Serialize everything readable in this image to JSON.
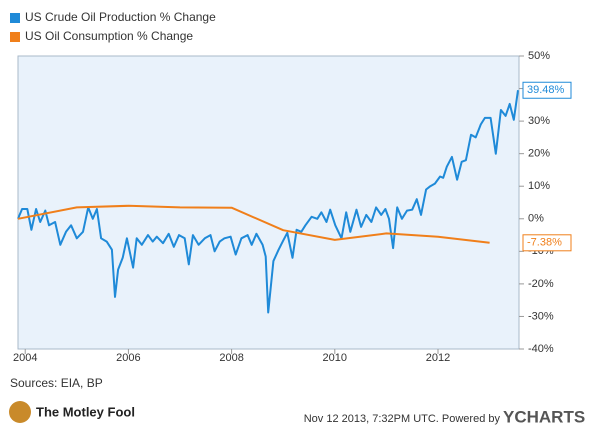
{
  "chart_data": {
    "type": "line",
    "series": [
      {
        "name": "US Crude Oil Production % Change",
        "color": "#1f8ad8",
        "end_label": "39.48%",
        "x": [
          2003.86,
          2003.94,
          2004.04,
          2004.12,
          2004.21,
          2004.29,
          2004.39,
          2004.46,
          2004.58,
          2004.68,
          2004.79,
          2004.89,
          2005.0,
          2005.12,
          2005.22,
          2005.31,
          2005.39,
          2005.47,
          2005.58,
          2005.68,
          2005.74,
          2005.8,
          2005.89,
          2005.97,
          2006.09,
          2006.16,
          2006.26,
          2006.38,
          2006.47,
          2006.55,
          2006.67,
          2006.78,
          2006.88,
          2006.98,
          2007.09,
          2007.17,
          2007.25,
          2007.36,
          2007.48,
          2007.59,
          2007.67,
          2007.77,
          2007.86,
          2007.98,
          2008.08,
          2008.19,
          2008.31,
          2008.39,
          2008.48,
          2008.6,
          2008.66,
          2008.71,
          2008.81,
          2008.91,
          2009.0,
          2009.08,
          2009.18,
          2009.26,
          2009.35,
          2009.43,
          2009.55,
          2009.66,
          2009.74,
          2009.84,
          2009.91,
          2010.01,
          2010.13,
          2010.22,
          2010.3,
          2010.42,
          2010.51,
          2010.61,
          2010.71,
          2010.8,
          2010.9,
          2010.98,
          2011.05,
          2011.13,
          2011.21,
          2011.3,
          2011.4,
          2011.5,
          2011.59,
          2011.67,
          2011.77,
          2011.85,
          2011.94,
          2012.04,
          2012.1,
          2012.17,
          2012.27,
          2012.37,
          2012.46,
          2012.54,
          2012.64,
          2012.73,
          2012.83,
          2012.91,
          2013.02,
          2013.12,
          2013.22,
          2013.31,
          2013.39,
          2013.47,
          2013.55
        ],
        "values": [
          0,
          3,
          3,
          -3.4,
          3,
          -1,
          2.5,
          -2,
          -1,
          -8,
          -4,
          -2,
          -6,
          -4,
          3.5,
          0,
          3,
          -6,
          -7,
          -9.5,
          -24,
          -15.6,
          -12,
          -6,
          -15,
          -6,
          -8,
          -5,
          -7,
          -5.5,
          -7.5,
          -4.6,
          -8.6,
          -5,
          -6,
          -14,
          -5,
          -8,
          -6,
          -5,
          -10,
          -7,
          -6,
          -5.5,
          -11,
          -6,
          -5,
          -8,
          -4.6,
          -8,
          -11.6,
          -28.8,
          -13,
          -9.5,
          -6.7,
          -4.3,
          -12,
          -3.4,
          -4,
          -2,
          0.6,
          0,
          2,
          -1,
          2.8,
          -2,
          -6,
          2,
          -4,
          2.8,
          -2.5,
          1.2,
          -1,
          3.5,
          1.2,
          3,
          0,
          -9,
          3.5,
          0,
          2.5,
          2.8,
          6,
          1.2,
          9,
          10,
          10.8,
          13,
          12.6,
          16,
          19,
          12,
          17.5,
          18,
          25.8,
          25,
          29,
          31,
          31,
          20,
          33.4,
          31.6,
          35.3,
          30.4,
          39.48
        ]
      },
      {
        "name": "US Oil Consumption % Change",
        "color": "#f07f1a",
        "end_label": "-7.38%",
        "x": [
          2003.86,
          2005,
          2006,
          2007,
          2008,
          2009,
          2010,
          2011,
          2012,
          2013
        ],
        "values": [
          0,
          3.5,
          4,
          3.5,
          3.4,
          -3.5,
          -6.5,
          -4.5,
          -5.5,
          -7.38
        ]
      }
    ],
    "xlim": [
      2003.86,
      2013.57
    ],
    "xticks": [
      2004,
      2006,
      2008,
      2010,
      2012
    ],
    "ylim": [
      -40,
      50
    ],
    "yticks": [
      {
        "value": -40,
        "label": "-40%"
      },
      {
        "value": -30,
        "label": "-30%"
      },
      {
        "value": -20,
        "label": "-20%"
      },
      {
        "value": -10,
        "label": "-10%"
      },
      {
        "value": 0,
        "label": "0%"
      },
      {
        "value": 10,
        "label": "10%"
      },
      {
        "value": 20,
        "label": "20%"
      },
      {
        "value": 30,
        "label": "30%"
      },
      {
        "value": 40,
        "label": "40%"
      },
      {
        "value": 50,
        "label": "50%"
      }
    ],
    "grid": false
  },
  "footer": {
    "sources": "Sources: EIA, BP",
    "brand": "The Motley Fool",
    "timestamp": "Nov 12 2013, 7:32PM UTC.  Powered by",
    "logo": "YCHARTS"
  }
}
